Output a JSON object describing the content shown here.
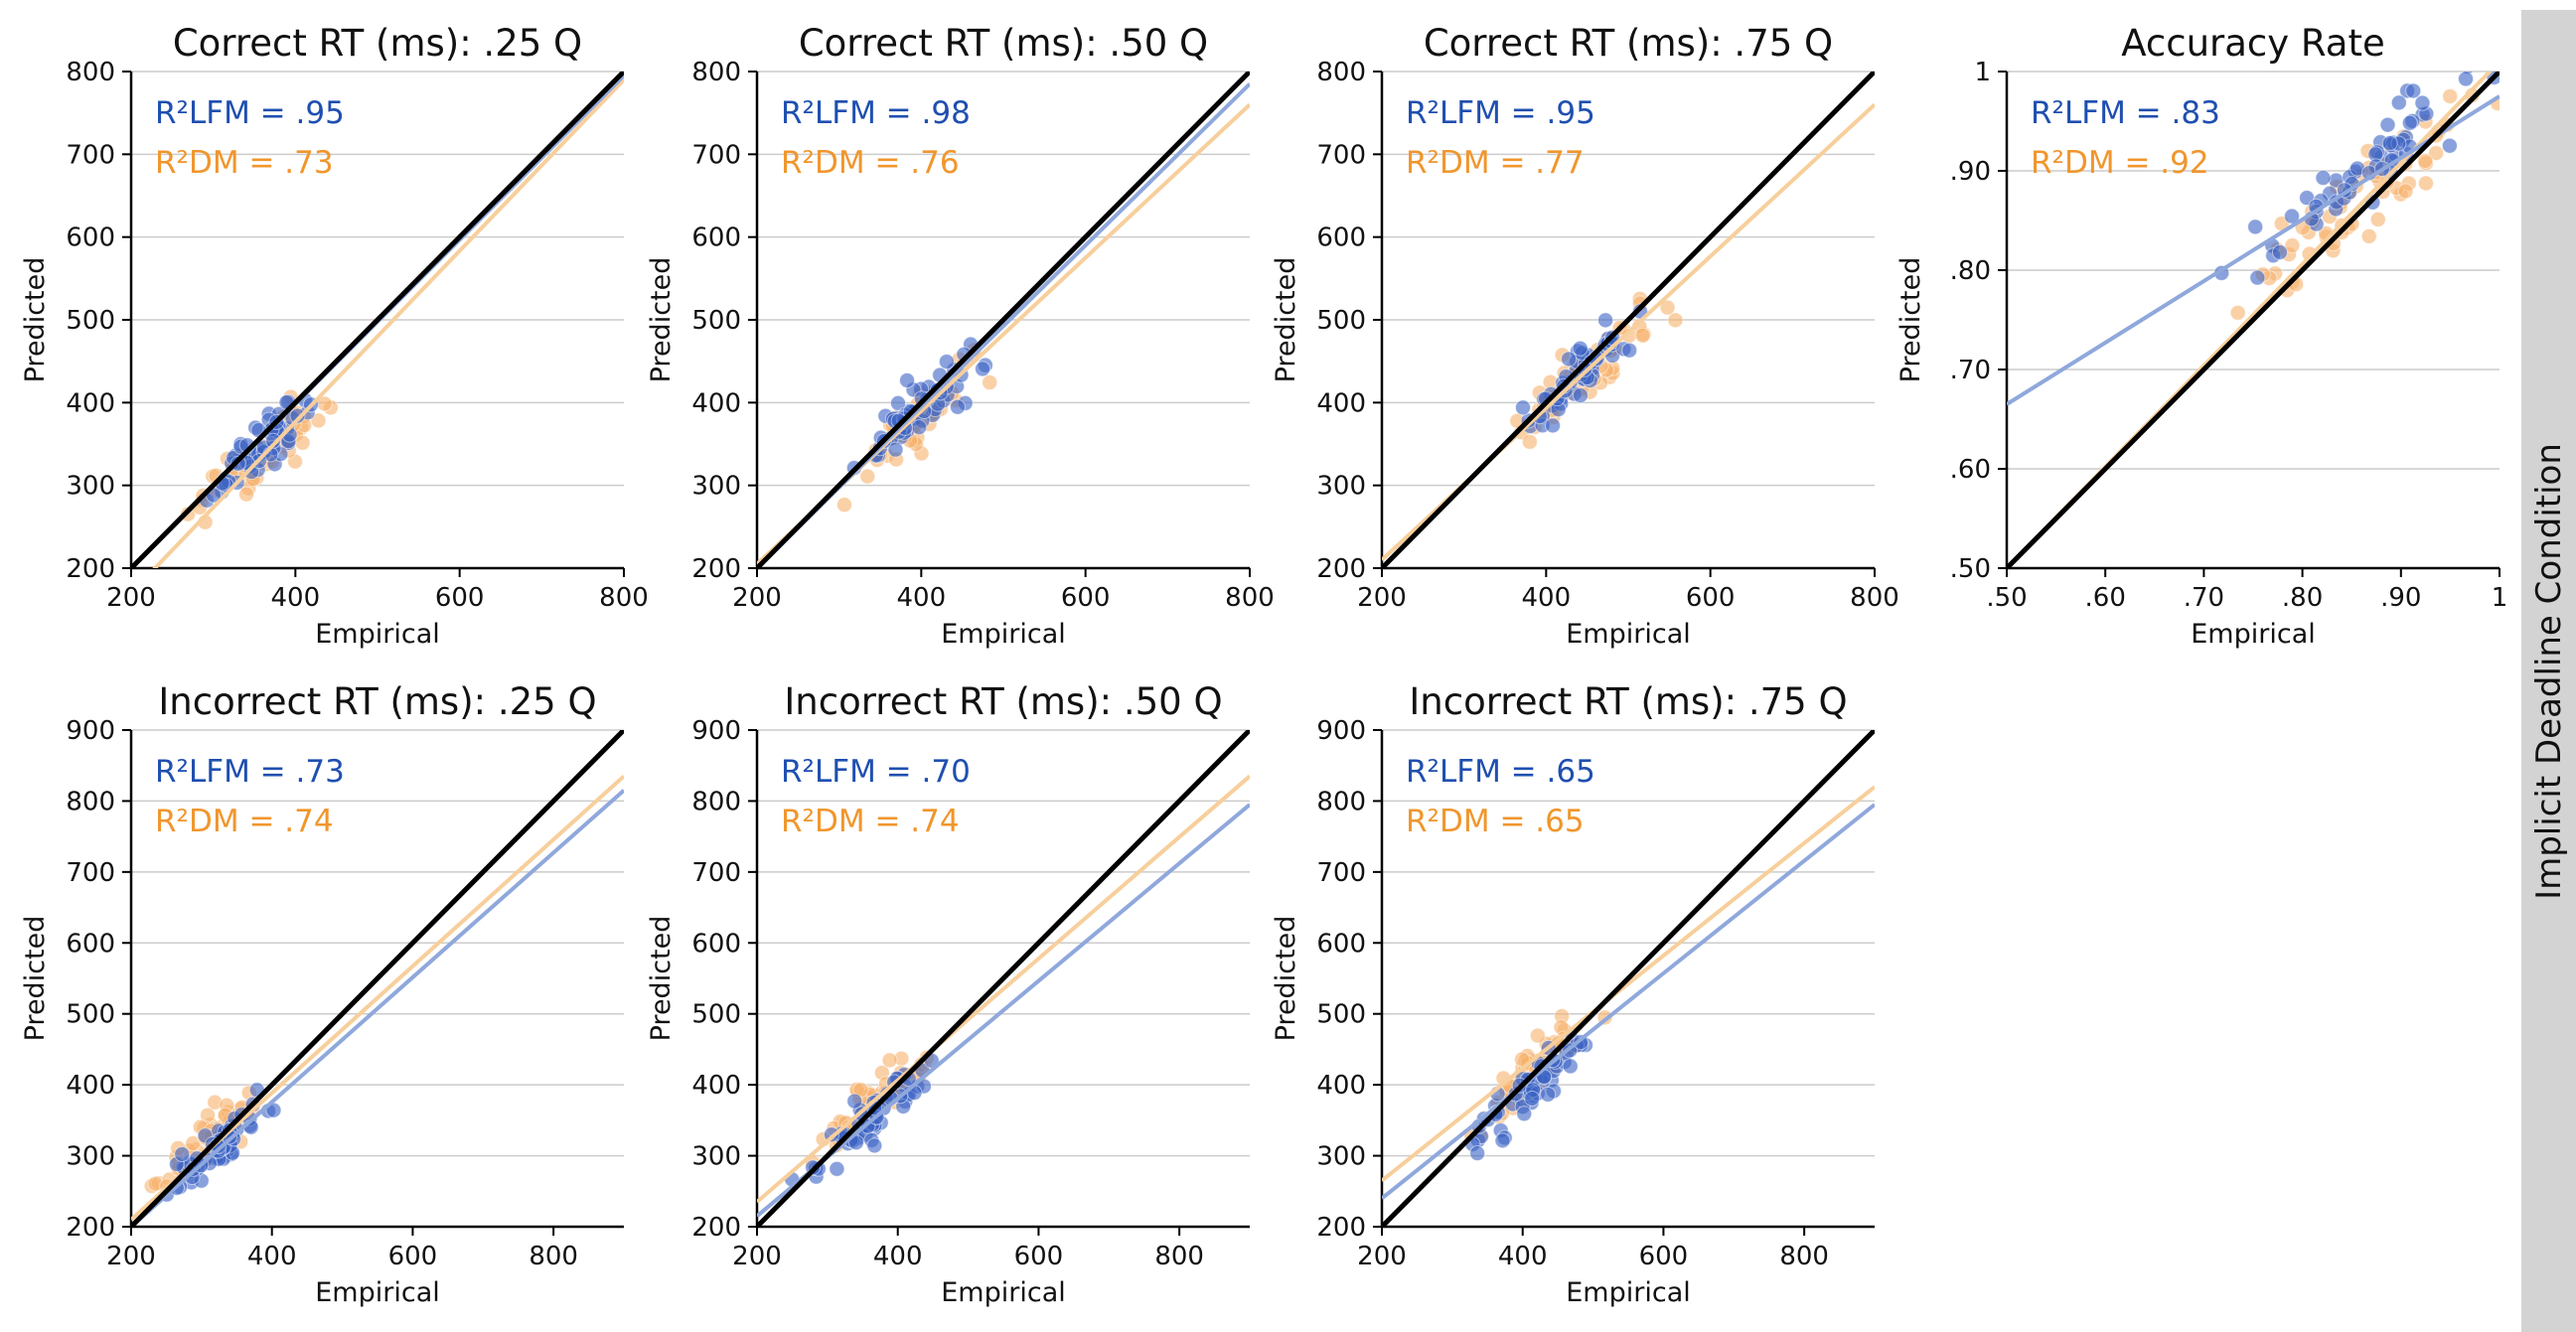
{
  "figure": {
    "condition_label": "Implicit Deadline Condition",
    "colors": {
      "lfm": "#1f4fb0",
      "lfm_fill": "#3a63c4",
      "lfm_line": "#8fa8dc",
      "dm": "#f0962d",
      "dm_fill": "#f6b06a",
      "dm_line": "#f7cf9c",
      "identity": "#000000",
      "grid": "#cccccc"
    }
  },
  "chart_data": [
    {
      "type": "scatter",
      "title": "Correct RT (ms): .25 Q",
      "xlabel": "Empirical",
      "ylabel": "Predicted",
      "xlim": [
        200,
        800
      ],
      "ylim": [
        200,
        800
      ],
      "xticks": [
        200,
        400,
        600,
        800
      ],
      "yticks": [
        200,
        300,
        400,
        500,
        600,
        700,
        800
      ],
      "xtick_labels": [
        "200",
        "400",
        "600",
        "800"
      ],
      "ytick_labels": [
        "200",
        "300",
        "400",
        "500",
        "600",
        "700",
        "800"
      ],
      "r2_lfm_label": "R²LFM = .95",
      "r2_dm_label": "R²DM = .73",
      "lfm_fit": [
        [
          200,
          200
        ],
        [
          800,
          795
        ]
      ],
      "dm_fit": [
        [
          200,
          170
        ],
        [
          800,
          790
        ]
      ],
      "points": {
        "lfm": {
          "center": [
            360,
            350
          ],
          "spread": [
            35,
            35
          ],
          "n": 60
        },
        "dm": {
          "center": [
            360,
            340
          ],
          "spread": [
            40,
            40
          ],
          "n": 60
        }
      }
    },
    {
      "type": "scatter",
      "title": "Correct RT (ms): .50 Q",
      "xlabel": "Empirical",
      "ylabel": "Predicted",
      "xlim": [
        200,
        800
      ],
      "ylim": [
        200,
        800
      ],
      "xticks": [
        200,
        400,
        600,
        800
      ],
      "yticks": [
        200,
        300,
        400,
        500,
        600,
        700,
        800
      ],
      "xtick_labels": [
        "200",
        "400",
        "600",
        "800"
      ],
      "ytick_labels": [
        "200",
        "300",
        "400",
        "500",
        "600",
        "700",
        "800"
      ],
      "r2_lfm_label": "R²LFM = .98",
      "r2_dm_label": "R²DM = .76",
      "lfm_fit": [
        [
          200,
          200
        ],
        [
          800,
          785
        ]
      ],
      "dm_fit": [
        [
          200,
          205
        ],
        [
          800,
          760
        ]
      ],
      "points": {
        "lfm": {
          "center": [
            400,
            395
          ],
          "spread": [
            35,
            35
          ],
          "n": 60
        },
        "dm": {
          "center": [
            405,
            385
          ],
          "spread": [
            40,
            40
          ],
          "n": 60
        }
      }
    },
    {
      "type": "scatter",
      "title": "Correct RT (ms): .75 Q",
      "xlabel": "Empirical",
      "ylabel": "Predicted",
      "xlim": [
        200,
        800
      ],
      "ylim": [
        200,
        800
      ],
      "xticks": [
        200,
        400,
        600,
        800
      ],
      "yticks": [
        200,
        300,
        400,
        500,
        600,
        700,
        800
      ],
      "xtick_labels": [
        "200",
        "400",
        "600",
        "800"
      ],
      "ytick_labels": [
        "200",
        "300",
        "400",
        "500",
        "600",
        "700",
        "800"
      ],
      "r2_lfm_label": "R²LFM = .95",
      "r2_dm_label": "R²DM = .77",
      "lfm_fit": [
        [
          200,
          200
        ],
        [
          800,
          800
        ]
      ],
      "dm_fit": [
        [
          200,
          210
        ],
        [
          800,
          760
        ]
      ],
      "points": {
        "lfm": {
          "center": [
            450,
            445
          ],
          "spread": [
            35,
            35
          ],
          "n": 60
        },
        "dm": {
          "center": [
            450,
            435
          ],
          "spread": [
            40,
            40
          ],
          "n": 60
        }
      }
    },
    {
      "type": "scatter",
      "title": "Accuracy Rate",
      "xlabel": "Empirical",
      "ylabel": "Predicted",
      "xlim": [
        0.5,
        1.0
      ],
      "ylim": [
        0.5,
        1.0
      ],
      "xticks": [
        0.5,
        0.6,
        0.7,
        0.8,
        0.9,
        1.0
      ],
      "yticks": [
        0.5,
        0.6,
        0.7,
        0.8,
        0.9,
        1.0
      ],
      "xtick_labels": [
        ".50",
        ".60",
        ".70",
        ".80",
        ".90",
        "1"
      ],
      "ytick_labels": [
        ".50",
        ".60",
        ".70",
        ".80",
        ".90",
        "1"
      ],
      "r2_lfm_label": "R²LFM = .83",
      "r2_dm_label": "R²DM = .92",
      "lfm_fit": [
        [
          0.5,
          0.665
        ],
        [
          1.0,
          0.975
        ]
      ],
      "dm_fit": [
        [
          0.5,
          0.5
        ],
        [
          1.0,
          1.01
        ]
      ],
      "points": {
        "lfm": {
          "center": [
            0.86,
            0.9
          ],
          "spread": [
            0.06,
            0.035
          ],
          "n": 60
        },
        "dm": {
          "center": [
            0.87,
            0.88
          ],
          "spread": [
            0.06,
            0.05
          ],
          "n": 60
        }
      }
    },
    {
      "type": "scatter",
      "title": "Incorrect RT (ms): .25 Q",
      "xlabel": "Empirical",
      "ylabel": "Predicted",
      "xlim": [
        200,
        900
      ],
      "ylim": [
        200,
        900
      ],
      "xticks": [
        200,
        400,
        600,
        800
      ],
      "yticks": [
        200,
        300,
        400,
        500,
        600,
        700,
        800,
        900
      ],
      "xtick_labels": [
        "200",
        "400",
        "600",
        "800"
      ],
      "ytick_labels": [
        "200",
        "300",
        "400",
        "500",
        "600",
        "700",
        "800",
        "900"
      ],
      "r2_lfm_label": "R²LFM = .73",
      "r2_dm_label": "R²DM = .74",
      "lfm_fit": [
        [
          200,
          200
        ],
        [
          900,
          815
        ]
      ],
      "dm_fit": [
        [
          200,
          210
        ],
        [
          900,
          835
        ]
      ],
      "points": {
        "lfm": {
          "center": [
            330,
            320
          ],
          "spread": [
            35,
            35
          ],
          "n": 60
        },
        "dm": {
          "center": [
            320,
            330
          ],
          "spread": [
            35,
            35
          ],
          "n": 60
        }
      }
    },
    {
      "type": "scatter",
      "title": "Incorrect RT (ms): .50 Q",
      "xlabel": "Empirical",
      "ylabel": "Predicted",
      "xlim": [
        200,
        900
      ],
      "ylim": [
        200,
        900
      ],
      "xticks": [
        200,
        400,
        600,
        800
      ],
      "yticks": [
        200,
        300,
        400,
        500,
        600,
        700,
        800,
        900
      ],
      "xtick_labels": [
        "200",
        "400",
        "600",
        "800"
      ],
      "ytick_labels": [
        "200",
        "300",
        "400",
        "500",
        "600",
        "700",
        "800",
        "900"
      ],
      "r2_lfm_label": "R²LFM = .70",
      "r2_dm_label": "R²DM = .74",
      "lfm_fit": [
        [
          200,
          215
        ],
        [
          900,
          795
        ]
      ],
      "dm_fit": [
        [
          200,
          235
        ],
        [
          900,
          835
        ]
      ],
      "points": {
        "lfm": {
          "center": [
            370,
            360
          ],
          "spread": [
            40,
            35
          ],
          "n": 60
        },
        "dm": {
          "center": [
            365,
            375
          ],
          "spread": [
            35,
            35
          ],
          "n": 60
        }
      }
    },
    {
      "type": "scatter",
      "title": "Incorrect RT (ms): .75 Q",
      "xlabel": "Empirical",
      "ylabel": "Predicted",
      "xlim": [
        200,
        900
      ],
      "ylim": [
        200,
        900
      ],
      "xticks": [
        200,
        400,
        600,
        800
      ],
      "yticks": [
        200,
        300,
        400,
        500,
        600,
        700,
        800,
        900
      ],
      "xtick_labels": [
        "200",
        "400",
        "600",
        "800"
      ],
      "ytick_labels": [
        "200",
        "300",
        "400",
        "500",
        "600",
        "700",
        "800",
        "900"
      ],
      "r2_lfm_label": "R²LFM = .65",
      "r2_dm_label": "R²DM = .65",
      "lfm_fit": [
        [
          200,
          240
        ],
        [
          900,
          795
        ]
      ],
      "dm_fit": [
        [
          200,
          265
        ],
        [
          900,
          820
        ]
      ],
      "points": {
        "lfm": {
          "center": [
            410,
            395
          ],
          "spread": [
            40,
            35
          ],
          "n": 60
        },
        "dm": {
          "center": [
            420,
            420
          ],
          "spread": [
            40,
            40
          ],
          "n": 60
        }
      }
    }
  ]
}
